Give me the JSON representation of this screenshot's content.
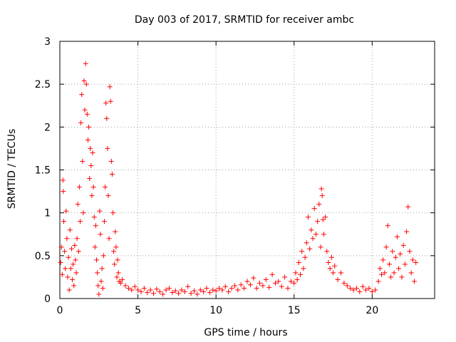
{
  "chart_data": {
    "type": "scatter",
    "title": "Day 003 of 2017, SRMTID for receiver ambc",
    "xlabel": "GPS time / hours",
    "ylabel": "SRMTID / TECUs",
    "xlim": [
      0,
      24
    ],
    "ylim": [
      0,
      3
    ],
    "xticks": [
      {
        "value": 0,
        "label": "0"
      },
      {
        "value": 5,
        "label": "5"
      },
      {
        "value": 10,
        "label": "10"
      },
      {
        "value": 15,
        "label": "15"
      },
      {
        "value": 20,
        "label": "20"
      }
    ],
    "yticks": [
      {
        "value": 0,
        "label": "0"
      },
      {
        "value": 0.5,
        "label": "0.5"
      },
      {
        "value": 1,
        "label": "1"
      },
      {
        "value": 1.5,
        "label": "1.5"
      },
      {
        "value": 2,
        "label": "2"
      },
      {
        "value": 2.5,
        "label": "2.5"
      },
      {
        "value": 3,
        "label": "3"
      }
    ],
    "grid": true,
    "marker": "+",
    "series": [
      {
        "name": "SRMTID",
        "color": "#ff0000",
        "points": [
          [
            0.05,
            0.42
          ],
          [
            0.1,
            0.6
          ],
          [
            0.15,
            0.28
          ],
          [
            0.2,
            1.38
          ],
          [
            0.22,
            1.25
          ],
          [
            0.25,
            0.9
          ],
          [
            0.3,
            0.55
          ],
          [
            0.35,
            0.35
          ],
          [
            0.4,
            1.02
          ],
          [
            0.45,
            0.7
          ],
          [
            0.5,
            0.25
          ],
          [
            0.55,
            0.48
          ],
          [
            0.6,
            0.1
          ],
          [
            0.65,
            0.8
          ],
          [
            0.7,
            0.35
          ],
          [
            0.75,
            0.58
          ],
          [
            0.8,
            0.22
          ],
          [
            0.85,
            0.4
          ],
          [
            0.9,
            0.15
          ],
          [
            0.95,
            0.62
          ],
          [
            1.0,
            0.45
          ],
          [
            1.05,
            0.3
          ],
          [
            1.1,
            0.7
          ],
          [
            1.15,
            1.1
          ],
          [
            1.2,
            0.55
          ],
          [
            1.25,
            1.3
          ],
          [
            1.3,
            0.9
          ],
          [
            1.35,
            2.05
          ],
          [
            1.4,
            2.38
          ],
          [
            1.45,
            1.6
          ],
          [
            1.5,
            1.0
          ],
          [
            1.55,
            2.54
          ],
          [
            1.6,
            2.2
          ],
          [
            1.65,
            2.74
          ],
          [
            1.7,
            2.5
          ],
          [
            1.75,
            2.15
          ],
          [
            1.8,
            1.85
          ],
          [
            1.85,
            2.0
          ],
          [
            1.9,
            1.4
          ],
          [
            1.95,
            1.75
          ],
          [
            2.0,
            1.55
          ],
          [
            2.05,
            1.2
          ],
          [
            2.1,
            1.7
          ],
          [
            2.15,
            1.3
          ],
          [
            2.2,
            0.95
          ],
          [
            2.25,
            0.6
          ],
          [
            2.3,
            0.85
          ],
          [
            2.35,
            0.45
          ],
          [
            2.4,
            0.3
          ],
          [
            2.45,
            0.15
          ],
          [
            2.5,
            0.05
          ],
          [
            2.55,
            1.02
          ],
          [
            2.6,
            0.75
          ],
          [
            2.65,
            0.2
          ],
          [
            2.7,
            0.35
          ],
          [
            2.75,
            0.12
          ],
          [
            2.8,
            0.5
          ],
          [
            2.85,
            0.9
          ],
          [
            2.9,
            1.3
          ],
          [
            2.95,
            2.28
          ],
          [
            3.0,
            2.1
          ],
          [
            3.05,
            1.75
          ],
          [
            3.1,
            1.2
          ],
          [
            3.15,
            0.7
          ],
          [
            3.2,
            2.47
          ],
          [
            3.25,
            2.3
          ],
          [
            3.3,
            1.6
          ],
          [
            3.35,
            1.45
          ],
          [
            3.4,
            1.0
          ],
          [
            3.45,
            0.55
          ],
          [
            3.5,
            0.4
          ],
          [
            3.55,
            0.78
          ],
          [
            3.6,
            0.6
          ],
          [
            3.65,
            0.25
          ],
          [
            3.7,
            0.45
          ],
          [
            3.75,
            0.3
          ],
          [
            3.8,
            0.2
          ],
          [
            3.9,
            0.18
          ],
          [
            4.0,
            0.22
          ],
          [
            4.2,
            0.15
          ],
          [
            4.4,
            0.12
          ],
          [
            4.6,
            0.1
          ],
          [
            4.8,
            0.14
          ],
          [
            5.0,
            0.1
          ],
          [
            5.2,
            0.08
          ],
          [
            5.4,
            0.12
          ],
          [
            5.6,
            0.07
          ],
          [
            5.8,
            0.1
          ],
          [
            6.0,
            0.06
          ],
          [
            6.2,
            0.11
          ],
          [
            6.4,
            0.08
          ],
          [
            6.6,
            0.05
          ],
          [
            6.8,
            0.1
          ],
          [
            7.0,
            0.12
          ],
          [
            7.2,
            0.07
          ],
          [
            7.4,
            0.09
          ],
          [
            7.6,
            0.06
          ],
          [
            7.8,
            0.1
          ],
          [
            8.0,
            0.08
          ],
          [
            8.2,
            0.14
          ],
          [
            8.4,
            0.06
          ],
          [
            8.6,
            0.09
          ],
          [
            8.8,
            0.05
          ],
          [
            9.0,
            0.1
          ],
          [
            9.2,
            0.08
          ],
          [
            9.4,
            0.12
          ],
          [
            9.6,
            0.07
          ],
          [
            9.8,
            0.1
          ],
          [
            10.0,
            0.09
          ],
          [
            10.2,
            0.12
          ],
          [
            10.4,
            0.1
          ],
          [
            10.6,
            0.14
          ],
          [
            10.8,
            0.08
          ],
          [
            11.0,
            0.12
          ],
          [
            11.2,
            0.15
          ],
          [
            11.4,
            0.1
          ],
          [
            11.6,
            0.16
          ],
          [
            11.8,
            0.12
          ],
          [
            12.0,
            0.2
          ],
          [
            12.2,
            0.16
          ],
          [
            12.4,
            0.24
          ],
          [
            12.6,
            0.12
          ],
          [
            12.8,
            0.18
          ],
          [
            13.0,
            0.15
          ],
          [
            13.2,
            0.22
          ],
          [
            13.4,
            0.13
          ],
          [
            13.6,
            0.28
          ],
          [
            13.8,
            0.18
          ],
          [
            14.0,
            0.2
          ],
          [
            14.2,
            0.14
          ],
          [
            14.4,
            0.25
          ],
          [
            14.6,
            0.12
          ],
          [
            14.8,
            0.2
          ],
          [
            15.0,
            0.18
          ],
          [
            15.1,
            0.3
          ],
          [
            15.2,
            0.22
          ],
          [
            15.3,
            0.42
          ],
          [
            15.4,
            0.28
          ],
          [
            15.5,
            0.55
          ],
          [
            15.6,
            0.35
          ],
          [
            15.7,
            0.48
          ],
          [
            15.8,
            0.65
          ],
          [
            15.9,
            0.95
          ],
          [
            16.0,
            0.58
          ],
          [
            16.1,
            0.8
          ],
          [
            16.2,
            0.7
          ],
          [
            16.3,
            1.05
          ],
          [
            16.4,
            0.75
          ],
          [
            16.5,
            0.9
          ],
          [
            16.6,
            1.1
          ],
          [
            16.7,
            0.6
          ],
          [
            16.75,
            1.28
          ],
          [
            16.8,
            1.2
          ],
          [
            16.85,
            0.92
          ],
          [
            16.9,
            0.75
          ],
          [
            17.0,
            0.95
          ],
          [
            17.1,
            0.55
          ],
          [
            17.2,
            0.42
          ],
          [
            17.3,
            0.35
          ],
          [
            17.4,
            0.48
          ],
          [
            17.5,
            0.3
          ],
          [
            17.6,
            0.38
          ],
          [
            17.8,
            0.22
          ],
          [
            18.0,
            0.3
          ],
          [
            18.2,
            0.18
          ],
          [
            18.4,
            0.15
          ],
          [
            18.6,
            0.12
          ],
          [
            18.8,
            0.1
          ],
          [
            19.0,
            0.12
          ],
          [
            19.2,
            0.08
          ],
          [
            19.4,
            0.14
          ],
          [
            19.6,
            0.1
          ],
          [
            19.8,
            0.12
          ],
          [
            20.0,
            0.08
          ],
          [
            20.2,
            0.1
          ],
          [
            20.4,
            0.2
          ],
          [
            20.5,
            0.35
          ],
          [
            20.6,
            0.28
          ],
          [
            20.7,
            0.45
          ],
          [
            20.8,
            0.3
          ],
          [
            20.9,
            0.6
          ],
          [
            21.0,
            0.85
          ],
          [
            21.1,
            0.4
          ],
          [
            21.2,
            0.25
          ],
          [
            21.3,
            0.55
          ],
          [
            21.4,
            0.3
          ],
          [
            21.5,
            0.48
          ],
          [
            21.6,
            0.72
          ],
          [
            21.7,
            0.35
          ],
          [
            21.8,
            0.52
          ],
          [
            21.9,
            0.25
          ],
          [
            22.0,
            0.62
          ],
          [
            22.1,
            0.4
          ],
          [
            22.2,
            0.78
          ],
          [
            22.3,
            1.07
          ],
          [
            22.4,
            0.55
          ],
          [
            22.5,
            0.3
          ],
          [
            22.6,
            0.45
          ],
          [
            22.7,
            0.2
          ],
          [
            22.8,
            0.42
          ]
        ]
      }
    ]
  }
}
